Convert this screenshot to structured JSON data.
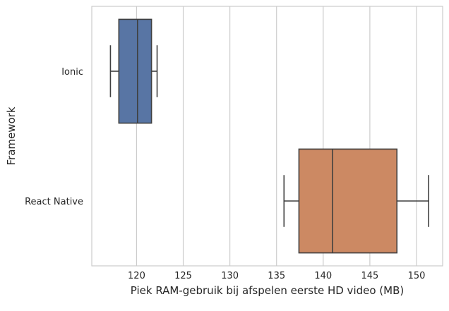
{
  "chart_data": {
    "type": "boxplot",
    "orientation": "horizontal",
    "xlabel": "Piek RAM-gebruik bij afspelen eerste HD video (MB)",
    "ylabel": "Framework",
    "xlim": [
      115.2,
      152.8
    ],
    "x_ticks": [
      120,
      125,
      130,
      135,
      140,
      145,
      150
    ],
    "grid": true,
    "categories": [
      "Ionic",
      "React Native"
    ],
    "boxes": [
      {
        "category": "Ionic",
        "whisker_low": 117.2,
        "q1": 118.1,
        "median": 120.1,
        "q3": 121.6,
        "whisker_high": 122.2,
        "color": "#5875A4"
      },
      {
        "category": "React Native",
        "whisker_low": 135.8,
        "q1": 137.4,
        "median": 141.0,
        "q3": 147.9,
        "whisker_high": 151.3,
        "color": "#CC8963"
      }
    ]
  }
}
